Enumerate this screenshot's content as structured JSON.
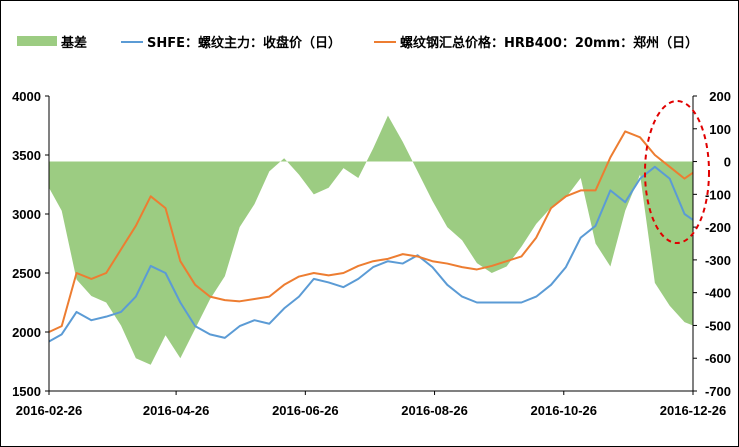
{
  "chart_data": {
    "type": "line",
    "title": "",
    "x_tick_labels": [
      "2016-02-26",
      "2016-04-26",
      "2016-06-26",
      "2016-08-26",
      "2016-10-26",
      "2016-12-26"
    ],
    "y_left": {
      "range": [
        1500,
        4000
      ],
      "ticks": [
        1500,
        2000,
        2500,
        3000,
        3500,
        4000
      ]
    },
    "y_right": {
      "range": [
        -700,
        200
      ],
      "ticks": [
        -700,
        -600,
        -500,
        -400,
        -300,
        -200,
        -100,
        0,
        100,
        200
      ]
    },
    "legend": {
      "position": "top"
    },
    "grid": false,
    "colors": {
      "basis": "#9ccc82",
      "shfe": "#5b9bd5",
      "hrb": "#ed7d31",
      "annotation": "#e00000"
    },
    "series": [
      {
        "name": "基差",
        "kind": "area",
        "axis": "right",
        "x": [
          "2016-02-26",
          "2016-03-03",
          "2016-03-10",
          "2016-03-17",
          "2016-03-24",
          "2016-03-31",
          "2016-04-07",
          "2016-04-14",
          "2016-04-21",
          "2016-04-28",
          "2016-05-05",
          "2016-05-12",
          "2016-05-19",
          "2016-05-26",
          "2016-06-02",
          "2016-06-09",
          "2016-06-16",
          "2016-06-23",
          "2016-06-30",
          "2016-07-07",
          "2016-07-14",
          "2016-07-21",
          "2016-07-28",
          "2016-08-04",
          "2016-08-11",
          "2016-08-18",
          "2016-08-25",
          "2016-09-01",
          "2016-09-08",
          "2016-09-15",
          "2016-09-22",
          "2016-09-29",
          "2016-10-06",
          "2016-10-13",
          "2016-10-20",
          "2016-10-27",
          "2016-11-03",
          "2016-11-10",
          "2016-11-17",
          "2016-11-24",
          "2016-12-01",
          "2016-12-08",
          "2016-12-15",
          "2016-12-22",
          "2016-12-29"
        ],
        "values": [
          -80,
          -150,
          -360,
          -410,
          -430,
          -500,
          -600,
          -620,
          -530,
          -600,
          -510,
          -420,
          -350,
          -200,
          -130,
          -30,
          10,
          -40,
          -100,
          -80,
          -20,
          -50,
          40,
          140,
          60,
          -30,
          -120,
          -200,
          -240,
          -310,
          -340,
          -320,
          -260,
          -190,
          -140,
          -110,
          -50,
          -250,
          -320,
          -150,
          -40,
          -370,
          -440,
          -490,
          -500
        ]
      },
      {
        "name": "SHFE：螺纹主力：收盘价（日）",
        "kind": "line",
        "axis": "left",
        "x": [
          "2016-02-26",
          "2016-03-03",
          "2016-03-10",
          "2016-03-17",
          "2016-03-24",
          "2016-03-31",
          "2016-04-07",
          "2016-04-14",
          "2016-04-21",
          "2016-04-28",
          "2016-05-05",
          "2016-05-12",
          "2016-05-19",
          "2016-05-26",
          "2016-06-02",
          "2016-06-09",
          "2016-06-16",
          "2016-06-23",
          "2016-06-30",
          "2016-07-07",
          "2016-07-14",
          "2016-07-21",
          "2016-07-28",
          "2016-08-04",
          "2016-08-11",
          "2016-08-18",
          "2016-08-25",
          "2016-09-01",
          "2016-09-08",
          "2016-09-15",
          "2016-09-22",
          "2016-09-29",
          "2016-10-06",
          "2016-10-13",
          "2016-10-20",
          "2016-10-27",
          "2016-11-03",
          "2016-11-10",
          "2016-11-17",
          "2016-11-24",
          "2016-12-01",
          "2016-12-08",
          "2016-12-15",
          "2016-12-22",
          "2016-12-29"
        ],
        "values": [
          1920,
          1980,
          2170,
          2100,
          2130,
          2170,
          2300,
          2560,
          2500,
          2250,
          2050,
          1980,
          1950,
          2050,
          2100,
          2070,
          2200,
          2300,
          2450,
          2420,
          2380,
          2450,
          2550,
          2600,
          2580,
          2650,
          2550,
          2400,
          2300,
          2250,
          2250,
          2250,
          2250,
          2300,
          2400,
          2550,
          2800,
          2900,
          3200,
          3100,
          3300,
          3400,
          3300,
          3000,
          2950
        ]
      },
      {
        "name": "螺纹钢汇总价格：HRB400：20mm：郑州（日）",
        "kind": "line",
        "axis": "left",
        "x": [
          "2016-02-26",
          "2016-03-03",
          "2016-03-10",
          "2016-03-17",
          "2016-03-24",
          "2016-03-31",
          "2016-04-07",
          "2016-04-14",
          "2016-04-21",
          "2016-04-28",
          "2016-05-05",
          "2016-05-12",
          "2016-05-19",
          "2016-05-26",
          "2016-06-02",
          "2016-06-09",
          "2016-06-16",
          "2016-06-23",
          "2016-06-30",
          "2016-07-07",
          "2016-07-14",
          "2016-07-21",
          "2016-07-28",
          "2016-08-04",
          "2016-08-11",
          "2016-08-18",
          "2016-08-25",
          "2016-09-01",
          "2016-09-08",
          "2016-09-15",
          "2016-09-22",
          "2016-09-29",
          "2016-10-06",
          "2016-10-13",
          "2016-10-20",
          "2016-10-27",
          "2016-11-03",
          "2016-11-10",
          "2016-11-17",
          "2016-11-24",
          "2016-12-01",
          "2016-12-08",
          "2016-12-15",
          "2016-12-22",
          "2016-12-29"
        ],
        "values": [
          2000,
          2050,
          2500,
          2450,
          2500,
          2700,
          2900,
          3150,
          3050,
          2600,
          2400,
          2300,
          2270,
          2260,
          2280,
          2300,
          2400,
          2470,
          2500,
          2480,
          2500,
          2560,
          2600,
          2620,
          2660,
          2640,
          2600,
          2580,
          2550,
          2530,
          2560,
          2600,
          2640,
          2800,
          3050,
          3150,
          3200,
          3200,
          3480,
          3700,
          3650,
          3500,
          3400,
          3300,
          3350
        ]
      }
    ],
    "annotations": [
      {
        "shape": "dashed-ellipse",
        "color": "#e00000",
        "around": "2016-12"
      }
    ]
  }
}
